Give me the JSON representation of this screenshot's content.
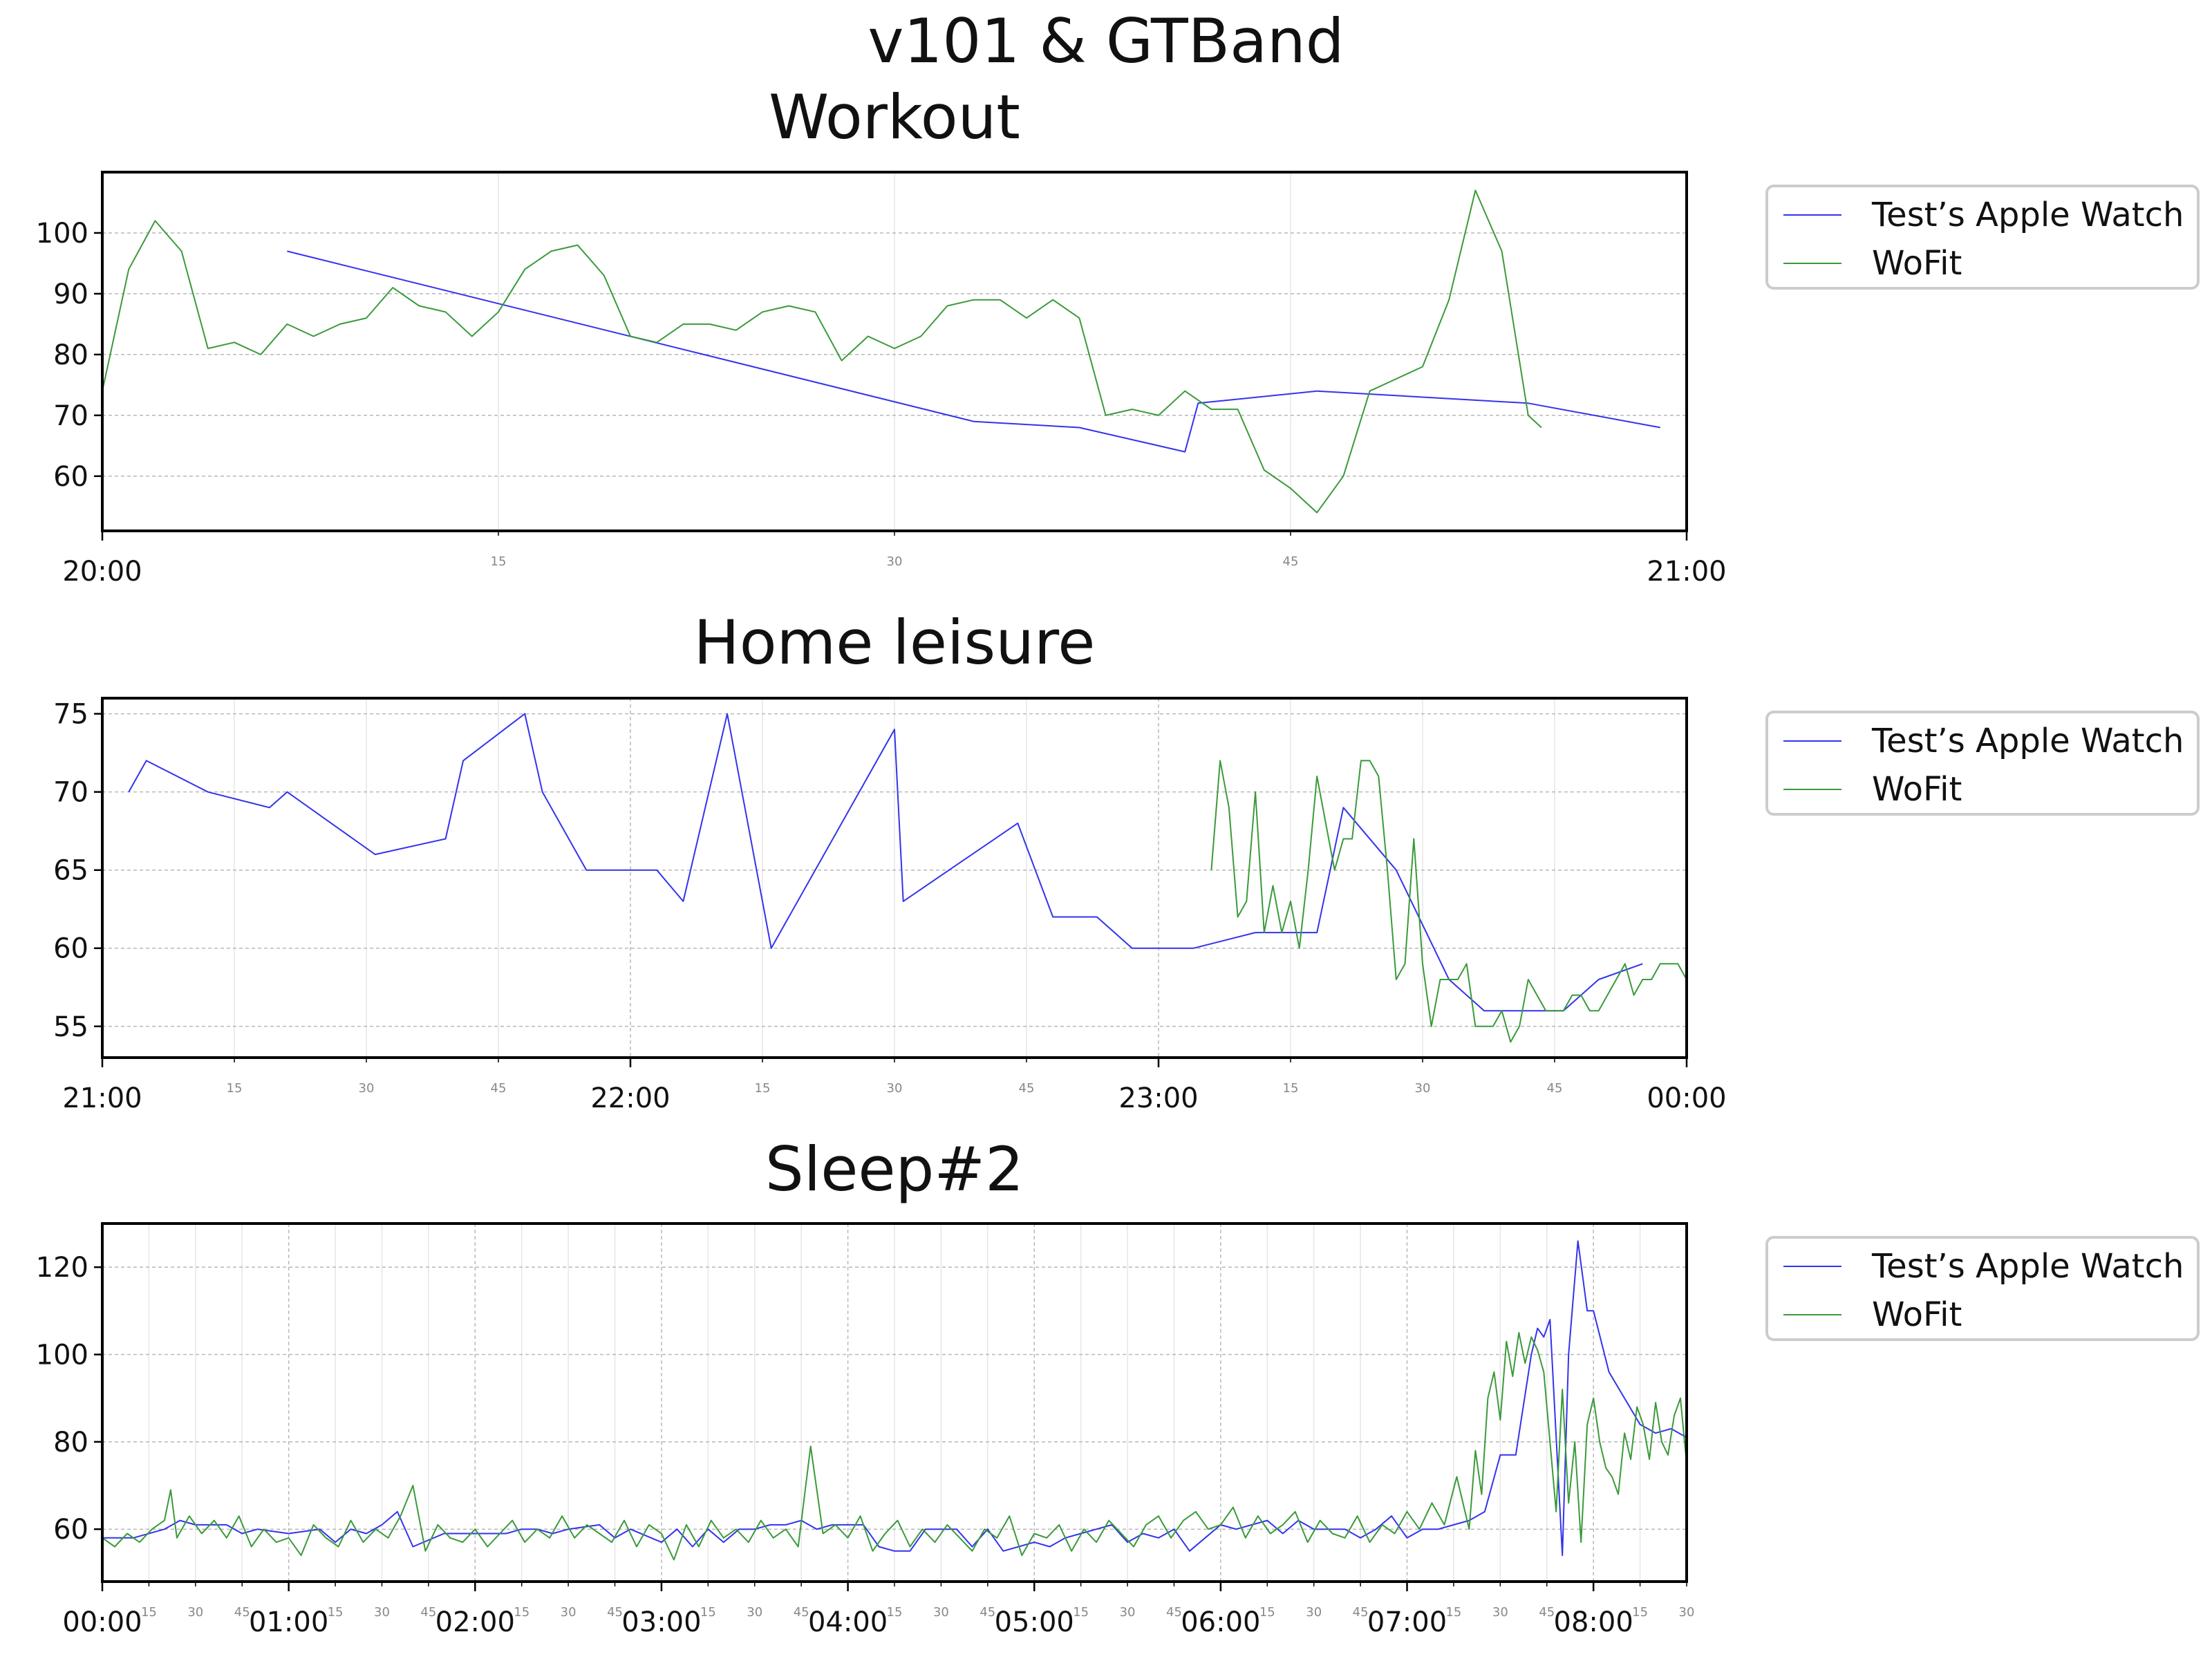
{
  "suptitle": "v101 & GTBand",
  "colors": {
    "apple": "#3333ee",
    "wofit": "#3a9a3a"
  },
  "chart_data": [
    {
      "type": "line",
      "title": "Workout",
      "xlabel": "",
      "ylabel": "",
      "xlim": [
        0,
        60
      ],
      "ylim": [
        51,
        110
      ],
      "yticks": [
        60,
        70,
        80,
        90,
        100
      ],
      "x_major_ticks": [
        {
          "x": 0,
          "label": "20:00"
        },
        {
          "x": 60,
          "label": "21:00"
        }
      ],
      "x_minor_ticks": [
        {
          "x": 15,
          "label": "15"
        },
        {
          "x": 30,
          "label": "30"
        },
        {
          "x": 45,
          "label": "45"
        }
      ],
      "grid": true,
      "legend": "outside-right",
      "series": [
        {
          "name": "Test’s Apple Watch",
          "color": "#3333ee",
          "x": [
            7,
            33,
            37,
            41,
            41.5,
            46,
            54,
            59
          ],
          "y": [
            97,
            69,
            68,
            64,
            72,
            74,
            72,
            68
          ]
        },
        {
          "name": "WoFit",
          "color": "#3a9a3a",
          "x": [
            0,
            1,
            2,
            3,
            4,
            5,
            6,
            7,
            8,
            9,
            10,
            11,
            12,
            13,
            14,
            15,
            16,
            17,
            18,
            19,
            20,
            21,
            22,
            23,
            24,
            25,
            26,
            27,
            28,
            29,
            30,
            31,
            32,
            33,
            34,
            35,
            36,
            37,
            38,
            39,
            40,
            41,
            42,
            43,
            44,
            45,
            46,
            47,
            48,
            49,
            50,
            51,
            52,
            53,
            54,
            54.5
          ],
          "y": [
            74,
            94,
            102,
            97,
            81,
            82,
            80,
            85,
            83,
            85,
            86,
            91,
            88,
            87,
            83,
            87,
            94,
            97,
            98,
            93,
            83,
            82,
            85,
            85,
            84,
            87,
            88,
            87,
            79,
            83,
            81,
            83,
            88,
            89,
            89,
            86,
            89,
            86,
            70,
            71,
            70,
            74,
            71,
            71,
            61,
            58,
            54,
            60,
            74,
            76,
            78,
            89,
            107,
            97,
            70,
            68
          ]
        }
      ]
    },
    {
      "type": "line",
      "title": "Home leisure",
      "xlabel": "",
      "ylabel": "",
      "xlim": [
        0,
        180
      ],
      "ylim": [
        53,
        76
      ],
      "yticks": [
        55,
        60,
        65,
        70,
        75
      ],
      "x_major_ticks": [
        {
          "x": 0,
          "label": "21:00"
        },
        {
          "x": 60,
          "label": "22:00"
        },
        {
          "x": 120,
          "label": "23:00"
        },
        {
          "x": 180,
          "label": "00:00"
        }
      ],
      "x_minor_ticks": [
        {
          "x": 15,
          "label": "15"
        },
        {
          "x": 30,
          "label": "30"
        },
        {
          "x": 45,
          "label": "45"
        },
        {
          "x": 75,
          "label": "15"
        },
        {
          "x": 90,
          "label": "30"
        },
        {
          "x": 105,
          "label": "45"
        },
        {
          "x": 135,
          "label": "15"
        },
        {
          "x": 150,
          "label": "30"
        },
        {
          "x": 165,
          "label": "45"
        }
      ],
      "grid": true,
      "legend": "outside-right",
      "series": [
        {
          "name": "Test’s Apple Watch",
          "color": "#3333ee",
          "x": [
            3,
            5,
            12,
            19,
            21,
            26,
            31,
            39,
            41,
            48,
            50,
            55,
            63,
            66,
            71,
            76,
            90,
            91,
            104,
            108,
            113,
            117,
            124,
            131,
            138,
            141,
            147,
            153,
            157,
            166,
            170,
            175
          ],
          "y": [
            70,
            72,
            70,
            69,
            70,
            68,
            66,
            67,
            72,
            75,
            70,
            65,
            65,
            63,
            75,
            60,
            74,
            63,
            68,
            62,
            62,
            60,
            60,
            61,
            61,
            69,
            65,
            58,
            56,
            56,
            58,
            59
          ]
        },
        {
          "name": "WoFit",
          "color": "#3a9a3a",
          "x": [
            126,
            127,
            128,
            129,
            130,
            131,
            132,
            133,
            134,
            135,
            136,
            137,
            138,
            139,
            140,
            141,
            142,
            143,
            144,
            145,
            146,
            147,
            148,
            149,
            150,
            151,
            152,
            153,
            154,
            155,
            156,
            157,
            158,
            159,
            160,
            161,
            162,
            163,
            164,
            165,
            166,
            167,
            168,
            169,
            170,
            171,
            172,
            173,
            174,
            175,
            176,
            177,
            178,
            179,
            180
          ],
          "y": [
            65,
            72,
            69,
            62,
            63,
            70,
            61,
            64,
            61,
            63,
            60,
            65,
            71,
            68,
            65,
            67,
            67,
            72,
            72,
            71,
            65,
            58,
            59,
            67,
            59,
            55,
            58,
            58,
            58,
            59,
            55,
            55,
            55,
            56,
            54,
            55,
            58,
            57,
            56,
            56,
            56,
            57,
            57,
            56,
            56,
            57,
            58,
            59,
            57,
            58,
            58,
            59,
            59,
            59,
            58
          ]
        }
      ]
    },
    {
      "type": "line",
      "title": "Sleep#2",
      "xlabel": "",
      "ylabel": "",
      "xlim": [
        0,
        510
      ],
      "ylim": [
        48,
        130
      ],
      "yticks": [
        60,
        80,
        100,
        120
      ],
      "x_major_ticks": [
        {
          "x": 0,
          "label": "00:00"
        },
        {
          "x": 60,
          "label": "01:00"
        },
        {
          "x": 120,
          "label": "02:00"
        },
        {
          "x": 180,
          "label": "03:00"
        },
        {
          "x": 240,
          "label": "04:00"
        },
        {
          "x": 300,
          "label": "05:00"
        },
        {
          "x": 360,
          "label": "06:00"
        },
        {
          "x": 420,
          "label": "07:00"
        },
        {
          "x": 480,
          "label": "08:00"
        }
      ],
      "x_minor_ticks": [
        {
          "x": 15,
          "label": "15"
        },
        {
          "x": 30,
          "label": "30"
        },
        {
          "x": 45,
          "label": "45"
        },
        {
          "x": 75,
          "label": "15"
        },
        {
          "x": 90,
          "label": "30"
        },
        {
          "x": 105,
          "label": "45"
        },
        {
          "x": 135,
          "label": "15"
        },
        {
          "x": 150,
          "label": "30"
        },
        {
          "x": 165,
          "label": "45"
        },
        {
          "x": 195,
          "label": "15"
        },
        {
          "x": 210,
          "label": "30"
        },
        {
          "x": 225,
          "label": "45"
        },
        {
          "x": 255,
          "label": "15"
        },
        {
          "x": 270,
          "label": "30"
        },
        {
          "x": 285,
          "label": "45"
        },
        {
          "x": 315,
          "label": "15"
        },
        {
          "x": 330,
          "label": "30"
        },
        {
          "x": 345,
          "label": "45"
        },
        {
          "x": 375,
          "label": "15"
        },
        {
          "x": 390,
          "label": "30"
        },
        {
          "x": 405,
          "label": "45"
        },
        {
          "x": 435,
          "label": "15"
        },
        {
          "x": 450,
          "label": "30"
        },
        {
          "x": 465,
          "label": "45"
        },
        {
          "x": 495,
          "label": "15"
        },
        {
          "x": 510,
          "label": "30"
        }
      ],
      "grid": true,
      "legend": "outside-right",
      "series": [
        {
          "name": "Test’s Apple Watch",
          "color": "#3333ee",
          "x": [
            0,
            10,
            20,
            25,
            30,
            40,
            45,
            50,
            60,
            70,
            75,
            80,
            85,
            90,
            95,
            100,
            110,
            120,
            125,
            130,
            135,
            140,
            145,
            150,
            160,
            165,
            170,
            180,
            185,
            190,
            195,
            200,
            205,
            210,
            215,
            220,
            225,
            230,
            235,
            240,
            245,
            250,
            255,
            260,
            265,
            270,
            275,
            280,
            285,
            290,
            295,
            300,
            305,
            310,
            315,
            320,
            325,
            330,
            335,
            340,
            345,
            350,
            355,
            360,
            365,
            370,
            375,
            380,
            385,
            390,
            395,
            400,
            405,
            410,
            415,
            420,
            425,
            430,
            435,
            440,
            445,
            450,
            455,
            460,
            462,
            464,
            466,
            470,
            472,
            475,
            478,
            480,
            485,
            490,
            495,
            500,
            505,
            510
          ],
          "y": [
            58,
            58,
            60,
            62,
            61,
            61,
            59,
            60,
            59,
            60,
            57,
            60,
            59,
            61,
            64,
            56,
            59,
            59,
            59,
            59,
            60,
            60,
            59,
            60,
            61,
            58,
            60,
            57,
            60,
            56,
            60,
            57,
            60,
            60,
            61,
            61,
            62,
            60,
            61,
            61,
            61,
            56,
            55,
            55,
            60,
            60,
            60,
            56,
            60,
            55,
            56,
            57,
            56,
            58,
            59,
            60,
            61,
            57,
            59,
            58,
            60,
            55,
            58,
            61,
            60,
            61,
            62,
            59,
            62,
            60,
            60,
            60,
            58,
            60,
            63,
            58,
            60,
            60,
            61,
            62,
            64,
            77,
            77,
            100,
            106,
            104,
            108,
            54,
            100,
            126,
            110,
            110,
            96,
            90,
            84,
            82,
            83,
            81
          ]
        },
        {
          "name": "WoFit",
          "color": "#3a9a3a",
          "x": [
            0,
            4,
            8,
            12,
            16,
            20,
            22,
            24,
            28,
            32,
            36,
            40,
            44,
            48,
            52,
            56,
            60,
            64,
            68,
            72,
            76,
            80,
            84,
            88,
            92,
            96,
            100,
            104,
            108,
            112,
            116,
            120,
            124,
            128,
            132,
            136,
            140,
            144,
            148,
            152,
            156,
            160,
            164,
            168,
            172,
            176,
            180,
            184,
            188,
            192,
            196,
            200,
            204,
            208,
            212,
            216,
            220,
            224,
            228,
            232,
            236,
            240,
            244,
            248,
            252,
            256,
            260,
            264,
            268,
            272,
            276,
            280,
            284,
            288,
            292,
            296,
            300,
            304,
            308,
            312,
            316,
            320,
            324,
            328,
            332,
            336,
            340,
            344,
            348,
            352,
            356,
            360,
            364,
            368,
            372,
            376,
            380,
            384,
            388,
            392,
            396,
            400,
            404,
            408,
            412,
            416,
            420,
            424,
            428,
            432,
            436,
            440,
            442,
            444,
            446,
            448,
            450,
            452,
            454,
            456,
            458,
            460,
            462,
            464,
            466,
            468,
            470,
            472,
            474,
            476,
            478,
            480,
            482,
            484,
            486,
            488,
            490,
            492,
            494,
            496,
            498,
            500,
            502,
            504,
            506,
            508,
            510
          ],
          "y": [
            58,
            56,
            59,
            57,
            60,
            62,
            69,
            58,
            63,
            59,
            62,
            58,
            63,
            56,
            60,
            57,
            58,
            54,
            61,
            58,
            56,
            62,
            57,
            60,
            58,
            63,
            70,
            55,
            61,
            58,
            57,
            60,
            56,
            59,
            62,
            57,
            60,
            58,
            63,
            58,
            61,
            59,
            57,
            62,
            56,
            61,
            59,
            53,
            61,
            56,
            62,
            58,
            60,
            57,
            62,
            58,
            60,
            56,
            79,
            59,
            61,
            58,
            63,
            55,
            59,
            62,
            56,
            60,
            57,
            61,
            58,
            55,
            60,
            58,
            63,
            54,
            59,
            58,
            61,
            55,
            60,
            57,
            62,
            59,
            56,
            61,
            63,
            58,
            62,
            64,
            60,
            61,
            65,
            58,
            63,
            59,
            61,
            64,
            57,
            62,
            59,
            58,
            63,
            57,
            61,
            59,
            64,
            60,
            66,
            61,
            72,
            60,
            78,
            68,
            90,
            96,
            85,
            103,
            95,
            105,
            98,
            104,
            101,
            96,
            80,
            64,
            92,
            66,
            80,
            57,
            84,
            90,
            80,
            74,
            72,
            68,
            82,
            76,
            88,
            84,
            76,
            89,
            80,
            77,
            86,
            90,
            75
          ]
        }
      ]
    }
  ]
}
